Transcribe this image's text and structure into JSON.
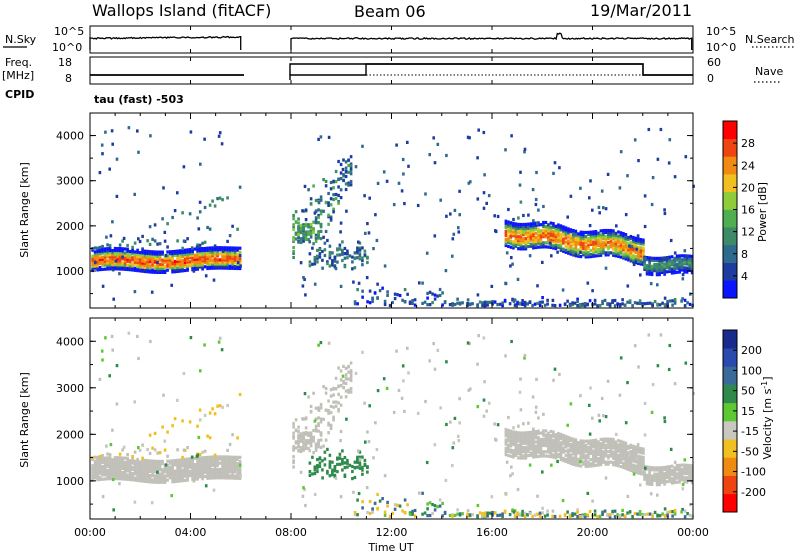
{
  "header": {
    "station": "Wallops Island (fitACF)",
    "beam": "Beam 06",
    "date": "19/Mar/2011"
  },
  "status_panels": {
    "nsky_label": "N.Sky",
    "nsky_ticks": [
      "10^5",
      "10^0"
    ],
    "nsearch_label": "N.Search",
    "nsearch_ticks": [
      "10^5",
      "10^0"
    ],
    "freq_label": "Freq.",
    "freq_unit": "[MHz]",
    "freq_ticks": [
      "18",
      "8"
    ],
    "nave_label": "Nave",
    "nave_ticks": [
      "60",
      "0"
    ],
    "cpid_label": "CPID",
    "cpid_value": "tau (fast) -503"
  },
  "colors": {
    "power_scale": [
      "#0a14ff",
      "#1e3ca0",
      "#2e6a8e",
      "#3d8a66",
      "#4fae4f",
      "#8fcc3a",
      "#f0c020",
      "#f08a10",
      "#f04410",
      "#ff0000"
    ],
    "velocity_scale": [
      "#1a2a8c",
      "#2a4ab0",
      "#3a6a9a",
      "#2e8a4a",
      "#5ec832",
      "#c8c8c0",
      "#f0c020",
      "#f08a10",
      "#f04410",
      "#ff0000"
    ],
    "ground_scatter": "#c0c0b8"
  },
  "chart_data": [
    {
      "type": "heatmap",
      "name": "power",
      "ylabel": "Slant Range [km]",
      "xlabel": "Time UT",
      "xlim_hours": [
        0,
        24
      ],
      "ylim_km": [
        180,
        4500
      ],
      "yticks": [
        "1000",
        "2000",
        "3000",
        "4000"
      ],
      "xticks": [
        "00:00",
        "04:00",
        "08:00",
        "12:00",
        "16:00",
        "20:00",
        "00:00"
      ],
      "colorbar_label": "Power [dB]",
      "colorbar_ticks": [
        "28",
        "24",
        "20",
        "16",
        "12",
        "8",
        "4"
      ],
      "colorbar_range": [
        0,
        30
      ],
      "data_gaps_hours": [
        [
          6.0,
          8.0
        ]
      ],
      "features": [
        {
          "desc": "strong band",
          "t": [
            0.0,
            6.0
          ],
          "range_km": [
            1000,
            1500
          ],
          "peak_db": 28
        },
        {
          "desc": "evening band",
          "t": [
            16.5,
            22.0
          ],
          "range_km": [
            1200,
            2100
          ],
          "peak_db": 28
        },
        {
          "desc": "post-22 band",
          "t": [
            22.0,
            24.0
          ],
          "range_km": [
            950,
            1350
          ],
          "peak_db": 12
        },
        {
          "desc": "morning scatter",
          "t": [
            8.0,
            11.0
          ],
          "range_km": [
            1100,
            3600
          ],
          "peak_db": 12
        },
        {
          "desc": "near-range",
          "t": [
            10.5,
            24.0
          ],
          "range_km": [
            200,
            500
          ],
          "peak_db": 8
        }
      ]
    },
    {
      "type": "heatmap",
      "name": "velocity",
      "ylabel": "Slant Range [km]",
      "xlabel": "Time UT",
      "xlim_hours": [
        0,
        24
      ],
      "ylim_km": [
        180,
        4500
      ],
      "yticks": [
        "1000",
        "2000",
        "3000",
        "4000"
      ],
      "xticks": [
        "00:00",
        "04:00",
        "08:00",
        "12:00",
        "16:00",
        "20:00",
        "00:00"
      ],
      "colorbar_label": "Velocity [m s",
      "colorbar_label_sup": "-1",
      "colorbar_label_end": "]",
      "colorbar_ticks": [
        "200",
        "100",
        "50",
        "15",
        "-15",
        "-50",
        "-100",
        "-200"
      ],
      "colorbar_range": [
        -250,
        250
      ],
      "data_gaps_hours": [
        [
          6.0,
          8.0
        ]
      ]
    }
  ],
  "axis_title": "Time UT"
}
